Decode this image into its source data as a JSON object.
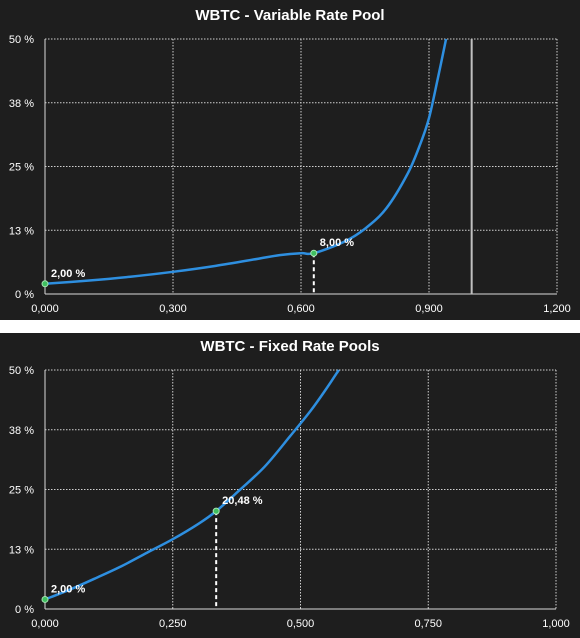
{
  "chart_data": [
    {
      "type": "line",
      "title": "WBTC - Variable Rate Pool",
      "xlim": [
        0,
        1.2
      ],
      "ylim": [
        0,
        0.5
      ],
      "x_ticks": [
        0,
        0.3,
        0.6,
        0.9,
        1.2
      ],
      "x_tick_labels": [
        "0,000",
        "0,300",
        "0,600",
        "0,900",
        "1,200"
      ],
      "y_ticks": [
        0,
        0.125,
        0.25,
        0.375,
        0.5
      ],
      "y_tick_labels": [
        "0 %",
        "13 %",
        "25 %",
        "38 %",
        "50 %"
      ],
      "grid": true,
      "series_color": "#2e8fe0",
      "curve": {
        "x": [
          0,
          0.1,
          0.2,
          0.3,
          0.4,
          0.5,
          0.55,
          0.6,
          0.63,
          0.7,
          0.75,
          0.8,
          0.85,
          0.88,
          0.9,
          0.92,
          0.94
        ],
        "y": [
          0.02,
          0.0262,
          0.0339,
          0.0435,
          0.0552,
          0.0692,
          0.0762,
          0.08,
          0.08,
          0.102,
          0.128,
          0.168,
          0.236,
          0.295,
          0.345,
          0.42,
          0.5
        ]
      },
      "points": [
        {
          "x": 0,
          "y": 0.02,
          "label": "2,00 %"
        },
        {
          "x": 0.63,
          "y": 0.08,
          "label": "8,00 %",
          "dashed_drop": true
        }
      ],
      "vline": {
        "x": 1.0,
        "color": "#bfbfbf"
      }
    },
    {
      "type": "line",
      "title": "WBTC - Fixed Rate Pools",
      "xlim": [
        0,
        1.0
      ],
      "ylim": [
        0,
        0.5
      ],
      "x_ticks": [
        0,
        0.25,
        0.5,
        0.75,
        1.0
      ],
      "x_tick_labels": [
        "0,000",
        "0,250",
        "0,500",
        "0,750",
        "1,000"
      ],
      "y_ticks": [
        0,
        0.125,
        0.25,
        0.375,
        0.5
      ],
      "y_tick_labels": [
        "0 %",
        "13 %",
        "25 %",
        "38 %",
        "50 %"
      ],
      "grid": true,
      "series_color": "#2e8fe0",
      "curve": {
        "x": [
          0,
          0.05,
          0.1,
          0.15,
          0.2,
          0.25,
          0.3,
          0.335,
          0.38,
          0.43,
          0.48,
          0.52,
          0.55,
          0.575
        ],
        "y": [
          0.02,
          0.0412,
          0.0649,
          0.0897,
          0.118,
          0.146,
          0.178,
          0.2048,
          0.248,
          0.298,
          0.362,
          0.415,
          0.46,
          0.5
        ]
      },
      "points": [
        {
          "x": 0,
          "y": 0.02,
          "label": "2,00 %"
        },
        {
          "x": 0.335,
          "y": 0.2048,
          "label": "20,48 %",
          "dashed_drop": true
        }
      ]
    }
  ]
}
